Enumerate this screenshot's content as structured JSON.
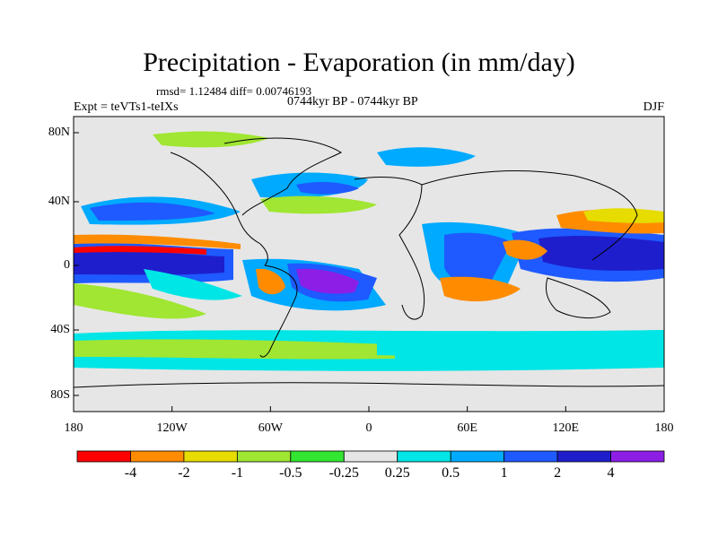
{
  "title": "Precipitation - Evaporation (in mm/day)",
  "stats": "rmsd= 1.12484 diff= 0.00746193",
  "experiment": "Expt = teVTs1-teIXs",
  "period": "0744kyr BP - 0744kyr BP",
  "season": "DJF",
  "map": {
    "lat_ticks": [
      "80N",
      "40N",
      "0",
      "40S",
      "80S"
    ],
    "lon_ticks": [
      "180",
      "120W",
      "60W",
      "0",
      "60E",
      "120E",
      "180"
    ]
  },
  "colorbar": {
    "labels": [
      "-4",
      "-2",
      "-1",
      "-0.5",
      "-0.25",
      "0.25",
      "0.5",
      "1",
      "2",
      "4"
    ],
    "colors": [
      "#ff0000",
      "#ff8c00",
      "#e6dc00",
      "#a0e632",
      "#32e632",
      "#e6e6e6",
      "#00e6e6",
      "#00aaff",
      "#1e5aff",
      "#1e1ecd",
      "#8c1ee6"
    ]
  },
  "colors": {
    "land_fill": "#e6e6e6",
    "coastline": "#000000"
  }
}
